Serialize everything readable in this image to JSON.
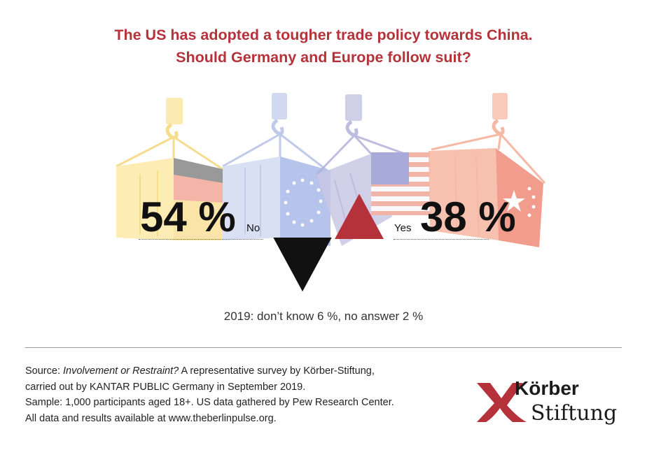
{
  "title": {
    "line1": "The US has adopted a tougher trade policy towards China.",
    "line2": "Should Germany and Europe follow suit?"
  },
  "chart_data": {
    "type": "bar",
    "categories": [
      "No",
      "Yes"
    ],
    "values": [
      54,
      38
    ],
    "value_labels": [
      "54 %",
      "38 %"
    ],
    "colors": {
      "no": "#111111",
      "yes": "#b5323a"
    }
  },
  "note": "2019: don’t know 6 %, no answer 2 %",
  "source": {
    "prefix": "Source: ",
    "study": "Involvement or Restraint?",
    "line1_rest": " A representative survey by Körber-Stiftung,",
    "line2": "carried out by KANTAR PUBLIC Germany in September 2019.",
    "line3": "Sample: 1,000 participants aged 18+. US data gathered by Pew Research Center.",
    "line4": "All data and results available at www.theberlinpulse.org."
  },
  "logo": {
    "word1": "Körber",
    "word2": "Stiftung",
    "color": "#b5323a"
  }
}
